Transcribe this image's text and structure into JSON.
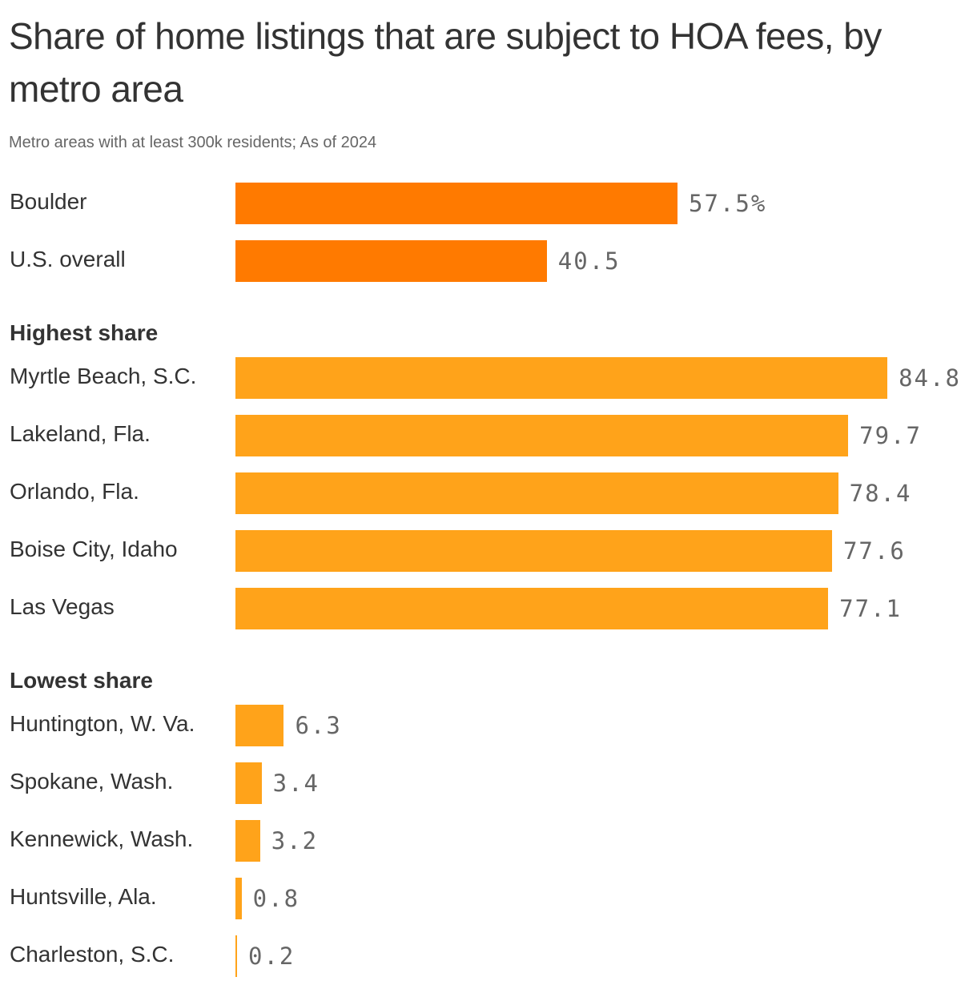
{
  "header": {
    "title": "Share of home listings that are subject to HOA fees, by metro area",
    "subtitle": "Metro areas with at least 300k residents; As of 2024"
  },
  "colors": {
    "highlight": "#FF7A00",
    "default": "#FFA31A"
  },
  "sections": {
    "highest": "Highest share",
    "lowest": "Lowest share"
  },
  "rows": [
    {
      "label": "Boulder",
      "value": 57.5,
      "display": "57.5%",
      "color": "#FF7A00"
    },
    {
      "label": "U.S. overall",
      "value": 40.5,
      "display": "40.5",
      "color": "#FF7A00"
    },
    {
      "label": "Myrtle Beach, S.C.",
      "value": 84.8,
      "display": "84.8",
      "color": "#FFA31A"
    },
    {
      "label": "Lakeland, Fla.",
      "value": 79.7,
      "display": "79.7",
      "color": "#FFA31A"
    },
    {
      "label": "Orlando, Fla.",
      "value": 78.4,
      "display": "78.4",
      "color": "#FFA31A"
    },
    {
      "label": "Boise City, Idaho",
      "value": 77.6,
      "display": "77.6",
      "color": "#FFA31A"
    },
    {
      "label": "Las Vegas",
      "value": 77.1,
      "display": "77.1",
      "color": "#FFA31A"
    },
    {
      "label": "Huntington, W. Va.",
      "value": 6.3,
      "display": "6.3",
      "color": "#FFA31A"
    },
    {
      "label": "Spokane, Wash.",
      "value": 3.4,
      "display": "3.4",
      "color": "#FFA31A"
    },
    {
      "label": "Kennewick, Wash.",
      "value": 3.2,
      "display": "3.2",
      "color": "#FFA31A"
    },
    {
      "label": "Huntsville, Ala.",
      "value": 0.8,
      "display": "0.8",
      "color": "#FFA31A"
    },
    {
      "label": "Charleston, S.C.",
      "value": 0.2,
      "display": "0.2",
      "color": "#FFA31A"
    }
  ],
  "chart_data": {
    "type": "bar",
    "orientation": "horizontal",
    "title": "Share of home listings that are subject to HOA fees, by metro area",
    "subtitle": "Metro areas with at least 300k residents; As of 2024",
    "xlabel": "",
    "ylabel": "",
    "unit": "%",
    "groups": [
      {
        "name": "",
        "categories": [
          "Boulder",
          "U.S. overall"
        ],
        "values": [
          57.5,
          40.5
        ]
      },
      {
        "name": "Highest share",
        "categories": [
          "Myrtle Beach, S.C.",
          "Lakeland, Fla.",
          "Orlando, Fla.",
          "Boise City, Idaho",
          "Las Vegas"
        ],
        "values": [
          84.8,
          79.7,
          78.4,
          77.6,
          77.1
        ]
      },
      {
        "name": "Lowest share",
        "categories": [
          "Huntington, W. Va.",
          "Spokane, Wash.",
          "Kennewick, Wash.",
          "Huntsville, Ala.",
          "Charleston, S.C."
        ],
        "values": [
          6.3,
          3.4,
          3.2,
          0.8,
          0.2
        ]
      }
    ],
    "categories": [
      "Boulder",
      "U.S. overall",
      "Myrtle Beach, S.C.",
      "Lakeland, Fla.",
      "Orlando, Fla.",
      "Boise City, Idaho",
      "Las Vegas",
      "Huntington, W. Va.",
      "Spokane, Wash.",
      "Kennewick, Wash.",
      "Huntsville, Ala.",
      "Charleston, S.C."
    ],
    "values": [
      57.5,
      40.5,
      84.8,
      79.7,
      78.4,
      77.6,
      77.1,
      6.3,
      3.4,
      3.2,
      0.8,
      0.2
    ],
    "xlim": [
      0,
      84.8
    ],
    "grid": false,
    "legend": null
  }
}
